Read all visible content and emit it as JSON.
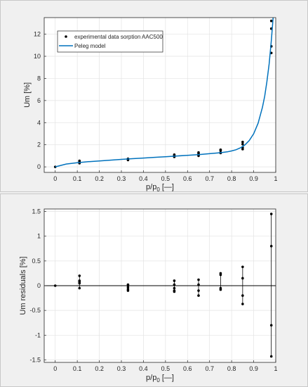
{
  "chart_data": [
    {
      "type": "scatter",
      "xlabel": "p/p",
      "xlabel_sub": "0",
      "xlabel_suffix": " [—]",
      "ylabel": "Um [%]",
      "xlim": [
        -0.05,
        1.0
      ],
      "ylim": [
        -0.5,
        13.5
      ],
      "x_ticks": [
        0,
        0.1,
        0.2,
        0.3,
        0.4,
        0.5,
        0.6,
        0.7,
        0.8,
        0.9,
        1
      ],
      "x_tick_labels": [
        "0",
        "0.1",
        "0.2",
        "0.3",
        "0.4",
        "0.5",
        "0.6",
        "0.7",
        "0.8",
        "0.9",
        "1"
      ],
      "y_ticks": [
        0,
        2,
        4,
        6,
        8,
        10,
        12
      ],
      "y_tick_labels": [
        "0",
        "2",
        "4",
        "6",
        "8",
        "10",
        "12"
      ],
      "grid": true,
      "legend_position": "top-left",
      "series": [
        {
          "name": "experimental data sorption AAC500",
          "type": "scatter",
          "color": "#000000",
          "x": [
            0,
            0.11,
            0.11,
            0.11,
            0.11,
            0.33,
            0.33,
            0.33,
            0.54,
            0.54,
            0.54,
            0.54,
            0.65,
            0.65,
            0.65,
            0.65,
            0.75,
            0.75,
            0.75,
            0.75,
            0.85,
            0.85,
            0.85,
            0.85,
            0.98,
            0.98,
            0.98,
            0.98
          ],
          "y": [
            0.0,
            0.33,
            0.42,
            0.48,
            0.55,
            0.62,
            0.7,
            0.73,
            0.9,
            0.97,
            1.02,
            1.1,
            1.0,
            1.1,
            1.2,
            1.3,
            1.25,
            1.3,
            1.5,
            1.55,
            1.6,
            1.75,
            2.05,
            2.25,
            10.3,
            10.9,
            12.5,
            13.2
          ]
        },
        {
          "name": "Peleg model",
          "type": "line",
          "color": "#0072bd",
          "x": [
            0,
            0.05,
            0.1,
            0.15,
            0.2,
            0.25,
            0.3,
            0.35,
            0.4,
            0.45,
            0.5,
            0.55,
            0.6,
            0.65,
            0.7,
            0.75,
            0.78,
            0.8,
            0.82,
            0.84,
            0.86,
            0.88,
            0.9,
            0.92,
            0.94,
            0.95,
            0.96,
            0.97,
            0.98,
            0.985,
            0.99
          ],
          "y": [
            0.0,
            0.26,
            0.38,
            0.47,
            0.54,
            0.61,
            0.68,
            0.74,
            0.8,
            0.86,
            0.92,
            0.98,
            1.04,
            1.11,
            1.19,
            1.28,
            1.36,
            1.44,
            1.55,
            1.72,
            1.98,
            2.38,
            3.0,
            3.95,
            5.4,
            6.4,
            7.7,
            9.3,
            11.4,
            12.7,
            14.0
          ]
        }
      ]
    },
    {
      "type": "scatter",
      "xlabel": "p/p",
      "xlabel_sub": "0",
      "xlabel_suffix": " [—]",
      "ylabel": "Um residuals [%]",
      "xlim": [
        -0.05,
        1.0
      ],
      "ylim": [
        -1.55,
        1.55
      ],
      "x_ticks": [
        0,
        0.1,
        0.2,
        0.3,
        0.4,
        0.5,
        0.6,
        0.7,
        0.8,
        0.9,
        1
      ],
      "x_tick_labels": [
        "0",
        "0.1",
        "0.2",
        "0.3",
        "0.4",
        "0.5",
        "0.6",
        "0.7",
        "0.8",
        "0.9",
        "1"
      ],
      "y_ticks": [
        -1.5,
        -1,
        -0.5,
        0,
        0.5,
        1,
        1.5
      ],
      "y_tick_labels": [
        "-1.5",
        "-1",
        "-0.5",
        "0",
        "0.5",
        "1",
        "1.5"
      ],
      "grid": true,
      "zero_line": true,
      "stems": true,
      "series": [
        {
          "type": "scatter",
          "color": "#000000",
          "x": [
            0,
            0.11,
            0.11,
            0.11,
            0.11,
            0.11,
            0.33,
            0.33,
            0.33,
            0.33,
            0.54,
            0.54,
            0.54,
            0.54,
            0.54,
            0.65,
            0.65,
            0.65,
            0.65,
            0.75,
            0.75,
            0.75,
            0.75,
            0.85,
            0.85,
            0.85,
            0.85,
            0.98,
            0.98,
            0.98,
            0.98
          ],
          "y": [
            0.0,
            0.2,
            0.1,
            0.08,
            0.05,
            -0.05,
            0.02,
            -0.03,
            -0.07,
            -0.1,
            0.1,
            0.02,
            -0.05,
            -0.1,
            -0.12,
            0.12,
            0.02,
            -0.1,
            -0.2,
            0.25,
            0.22,
            -0.05,
            -0.08,
            0.38,
            0.15,
            -0.2,
            -0.37,
            1.45,
            0.8,
            -0.8,
            -1.43
          ]
        }
      ]
    }
  ]
}
